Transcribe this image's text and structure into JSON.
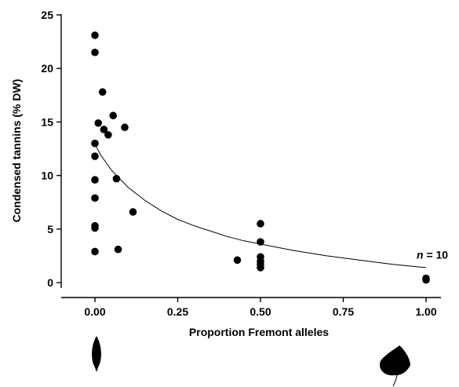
{
  "chart_data": {
    "type": "scatter",
    "xlabel": "Proportion Fremont alleles",
    "ylabel": "Condensed tannins (% DW)",
    "xlim": [
      -0.12,
      1.1
    ],
    "ylim": [
      -0.5,
      25
    ],
    "xticks": [
      0.0,
      0.25,
      0.5,
      0.75,
      1.0
    ],
    "xtick_labels": [
      "0.00",
      "0.25",
      "0.50",
      "0.75",
      "1.00"
    ],
    "yticks": [
      0,
      5,
      10,
      15,
      20,
      25
    ],
    "ytick_labels": [
      "0",
      "5",
      "10",
      "15",
      "20",
      "25"
    ],
    "grid": false,
    "annotation": {
      "italic": "n",
      "rest": " = 10",
      "x": 1.0,
      "y": 1.5
    },
    "points": [
      {
        "x": 0.0,
        "y": 23.1
      },
      {
        "x": 0.0,
        "y": 21.5
      },
      {
        "x": 0.0,
        "y": 13.0
      },
      {
        "x": 0.0,
        "y": 11.8
      },
      {
        "x": 0.0,
        "y": 9.6
      },
      {
        "x": 0.0,
        "y": 7.9
      },
      {
        "x": 0.0,
        "y": 5.3
      },
      {
        "x": 0.0,
        "y": 5.1
      },
      {
        "x": 0.0,
        "y": 2.9
      },
      {
        "x": 0.01,
        "y": 14.9
      },
      {
        "x": 0.023,
        "y": 17.8
      },
      {
        "x": 0.027,
        "y": 14.3
      },
      {
        "x": 0.04,
        "y": 13.8
      },
      {
        "x": 0.055,
        "y": 15.6
      },
      {
        "x": 0.065,
        "y": 9.7
      },
      {
        "x": 0.07,
        "y": 3.1
      },
      {
        "x": 0.09,
        "y": 14.5
      },
      {
        "x": 0.115,
        "y": 6.6
      },
      {
        "x": 0.43,
        "y": 2.1
      },
      {
        "x": 0.5,
        "y": 5.5
      },
      {
        "x": 0.5,
        "y": 3.8
      },
      {
        "x": 0.5,
        "y": 2.4
      },
      {
        "x": 0.5,
        "y": 2.0
      },
      {
        "x": 0.5,
        "y": 1.7
      },
      {
        "x": 0.5,
        "y": 1.4
      },
      {
        "x": 1.0,
        "y": 0.4
      },
      {
        "x": 1.0,
        "y": 0.25
      }
    ],
    "fit_curve": {
      "type": "hyperbolic",
      "x": [
        0.0,
        0.02,
        0.05,
        0.1,
        0.15,
        0.2,
        0.25,
        0.3,
        0.35,
        0.4,
        0.45,
        0.5,
        0.55,
        0.6,
        0.65,
        0.7,
        0.75,
        0.8,
        0.85,
        0.9,
        0.95,
        1.0
      ],
      "y": [
        12.9,
        11.8,
        10.5,
        8.9,
        7.7,
        6.7,
        5.9,
        5.3,
        4.8,
        4.3,
        3.9,
        3.6,
        3.3,
        3.0,
        2.75,
        2.5,
        2.3,
        2.1,
        1.9,
        1.7,
        1.55,
        1.4
      ]
    }
  },
  "leaves": {
    "left_icon": "narrowleaf-cottonwood-leaf-icon",
    "right_icon": "fremont-cottonwood-leaf-icon",
    "color": "#000000"
  }
}
